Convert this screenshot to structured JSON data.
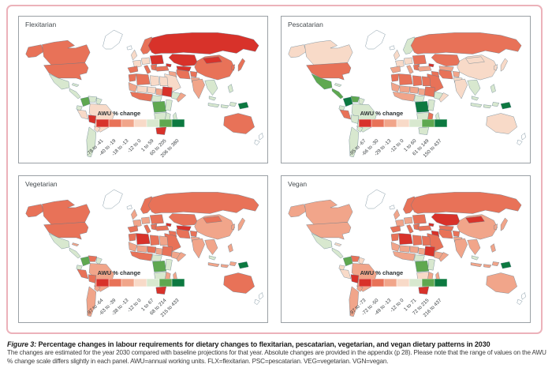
{
  "figure": {
    "caption_label": "Figure 3:",
    "caption_title": "Percentage changes in labour requirements for dietary changes to flexitarian, pescatarian, vegetarian, and vegan dietary patterns in 2030",
    "caption_body": "The changes are estimated for the year 2030 compared with baseline projections for that year. Absolute changes are provided in the appendix (p 28). Please note that the range of values on the AWU % change scale differs slightly in each panel. AWU=annual working units. FLX=flexitarian. PSC=pescatarian. VEG=vegetarian. VGN=vegan."
  },
  "colors": {
    "frame_pink": "#ecb2ba",
    "panel_border": "#9aa0a5",
    "coastline": "#5e7a8a",
    "no_data": "#ffffff",
    "palette": [
      "#d8322a",
      "#e87258",
      "#f1a58a",
      "#f8dac8",
      "#d8e8cf",
      "#5fa850",
      "#0c7940"
    ]
  },
  "chart_data": {
    "type": "heatmap",
    "subtype": "choropleth-world-maps",
    "unit": "AWU % change (annual working units, % change vs 2030 baseline)",
    "bin_note": "regions map country/region id to legend bin index 1-7 (1=most negative red, 7=most positive dark green, 0=no data)",
    "panels": [
      {
        "title": "Flexitarian",
        "legend_title": "AWU % change",
        "legend_labels": [
          "-78 to -41",
          "-40 to -19",
          "-18 to -13",
          "-12 to 0",
          "1 to 59",
          "60 to 205",
          "206 to 380"
        ],
        "regions": {
          "greenland": 0,
          "iceland": 0,
          "alaska": 2,
          "canada": 2,
          "usa": 2,
          "mexico": 5,
          "cuba": 5,
          "camerica": 5,
          "colombia": 6,
          "venezuela": 5,
          "guyanas": 5,
          "ecuador": 5,
          "peru": 4,
          "brazil": 4,
          "bolivia": 1,
          "paraguay": 4,
          "chile_argentina": 5,
          "scandinavia": 2,
          "uk": 4,
          "france": 4,
          "centraleurope": 4,
          "easteurope": 1,
          "iberia": 2,
          "italy": 2,
          "balkans": 2,
          "russia": 1,
          "kazakh": 1,
          "centralasia": 1,
          "caucasus": 1,
          "turkey": 2,
          "iraq": 3,
          "iran": 2,
          "afghanistan": 2,
          "pakistan": 3,
          "middleeast": 4,
          "morocco": 2,
          "algeria": 2,
          "libya": 4,
          "egypt": 4,
          "mauritania": 3,
          "mali": 4,
          "niger": 4,
          "chad": 3,
          "sudan": 1,
          "ethiopia": 5,
          "somalia": 3,
          "wafrica": 2,
          "cameroon_caf": 5,
          "drc": 6,
          "eastafrica": 5,
          "angola_zambia": 5,
          "mozam_zim": 5,
          "nam_bots": 5,
          "southafrica": 1,
          "madagascar": 5,
          "india": 3,
          "china": 2,
          "mongolia": 1,
          "korea": 2,
          "japan": 2,
          "seasia": 5,
          "philippines": 5,
          "malaysia": 5,
          "indonesia1": 5,
          "indonesia2": 5,
          "indonesia3": 5,
          "png": 7,
          "australia": 2,
          "newzealand": 0,
          "newzealand2": 0
        }
      },
      {
        "title": "Pescatarian",
        "legend_title": "AWU % change",
        "legend_labels": [
          "-85 to -67",
          "-66 to -30",
          "-29 to -13",
          "-12 to 0",
          "1 to 60",
          "61 to 149",
          "150 to 437"
        ],
        "regions": {
          "greenland": 0,
          "iceland": 0,
          "alaska": 4,
          "canada": 4,
          "usa": 2,
          "mexico": 6,
          "cuba": 5,
          "camerica": 6,
          "colombia": 7,
          "venezuela": 6,
          "guyanas": 5,
          "ecuador": 5,
          "peru": 2,
          "brazil": 5,
          "bolivia": 5,
          "paraguay": 5,
          "chile_argentina": 5,
          "scandinavia": 5,
          "uk": 4,
          "france": 4,
          "centraleurope": 4,
          "easteurope": 2,
          "iberia": 3,
          "italy": 3,
          "balkans": 2,
          "russia": 2,
          "kazakh": 2,
          "centralasia": 3,
          "caucasus": 1,
          "turkey": 3,
          "iraq": 2,
          "iran": 2,
          "afghanistan": 3,
          "pakistan": 4,
          "middleeast": 2,
          "morocco": 2,
          "algeria": 2,
          "libya": 2,
          "egypt": 2,
          "mauritania": 3,
          "mali": 3,
          "niger": 3,
          "chad": 3,
          "sudan": 2,
          "ethiopia": 5,
          "somalia": 4,
          "wafrica": 3,
          "cameroon_caf": 5,
          "drc": 7,
          "eastafrica": 5,
          "angola_zambia": 5,
          "mozam_zim": 2,
          "nam_bots": 5,
          "southafrica": 5,
          "madagascar": 5,
          "india": 4,
          "china": 4,
          "mongolia": 4,
          "korea": 4,
          "japan": 4,
          "seasia": 5,
          "philippines": 5,
          "malaysia": 5,
          "indonesia1": 5,
          "indonesia2": 5,
          "indonesia3": 5,
          "png": 7,
          "australia": 4,
          "newzealand": 0,
          "newzealand2": 0
        }
      },
      {
        "title": "Vegetarian",
        "legend_title": "AWU % change",
        "legend_labels": [
          "-97 to -64",
          "-63 to -39",
          "-38 to -13",
          "-12 to 0",
          "1 to 67",
          "68 to 214",
          "215 to 433"
        ],
        "regions": {
          "greenland": 0,
          "iceland": 0,
          "alaska": 2,
          "canada": 2,
          "usa": 2,
          "mexico": 5,
          "cuba": 3,
          "camerica": 5,
          "colombia": 6,
          "venezuela": 2,
          "guyanas": 5,
          "ecuador": 5,
          "peru": 2,
          "brazil": 3,
          "bolivia": 2,
          "paraguay": 3,
          "chile_argentina": 3,
          "scandinavia": 2,
          "uk": 3,
          "france": 3,
          "centraleurope": 3,
          "easteurope": 2,
          "iberia": 2,
          "italy": 2,
          "balkans": 2,
          "russia": 2,
          "kazakh": 2,
          "centralasia": 1,
          "caucasus": 1,
          "turkey": 2,
          "iraq": 2,
          "iran": 2,
          "afghanistan": 2,
          "pakistan": 3,
          "middleeast": 2,
          "morocco": 2,
          "algeria": 1,
          "libya": 2,
          "egypt": 3,
          "mauritania": 3,
          "mali": 3,
          "niger": 2,
          "chad": 3,
          "sudan": 2,
          "ethiopia": 3,
          "somalia": 3,
          "wafrica": 2,
          "cameroon_caf": 5,
          "drc": 6,
          "eastafrica": 5,
          "angola_zambia": 5,
          "mozam_zim": 3,
          "nam_bots": 5,
          "southafrica": 1,
          "madagascar": 3,
          "india": 3,
          "china": 3,
          "mongolia": 2,
          "korea": 3,
          "japan": 3,
          "seasia": 3,
          "philippines": 3,
          "malaysia": 5,
          "indonesia1": 3,
          "indonesia2": 3,
          "indonesia3": 3,
          "png": 7,
          "australia": 2,
          "newzealand": 0,
          "newzealand2": 0
        }
      },
      {
        "title": "Vegan",
        "legend_title": "AWU % change",
        "legend_labels": [
          "-97 to -73",
          "-72 to -50",
          "-49 to -13",
          "-12 to 0",
          "1 to 71",
          "72 to 215",
          "216 to 437"
        ],
        "regions": {
          "greenland": 0,
          "iceland": 0,
          "alaska": 3,
          "canada": 3,
          "usa": 3,
          "mexico": 5,
          "cuba": 4,
          "camerica": 5,
          "colombia": 6,
          "venezuela": 2,
          "guyanas": 4,
          "ecuador": 4,
          "peru": 4,
          "brazil": 3,
          "bolivia": 1,
          "paraguay": 3,
          "chile_argentina": 3,
          "scandinavia": 2,
          "uk": 3,
          "france": 3,
          "centraleurope": 3,
          "easteurope": 2,
          "iberia": 2,
          "italy": 2,
          "balkans": 2,
          "russia": 2,
          "kazakh": 1,
          "centralasia": 2,
          "caucasus": 1,
          "turkey": 2,
          "iraq": 1,
          "iran": 2,
          "afghanistan": 2,
          "pakistan": 3,
          "middleeast": 2,
          "morocco": 2,
          "algeria": 1,
          "libya": 2,
          "egypt": 2,
          "mauritania": 3,
          "mali": 3,
          "niger": 3,
          "chad": 3,
          "sudan": 1,
          "ethiopia": 3,
          "somalia": 3,
          "wafrica": 3,
          "cameroon_caf": 5,
          "drc": 6,
          "eastafrica": 5,
          "angola_zambia": 4,
          "mozam_zim": 3,
          "nam_bots": 5,
          "southafrica": 1,
          "madagascar": 3,
          "india": 3,
          "china": 3,
          "mongolia": 1,
          "korea": 3,
          "japan": 3,
          "seasia": 3,
          "philippines": 3,
          "malaysia": 5,
          "indonesia1": 3,
          "indonesia2": 3,
          "indonesia3": 3,
          "png": 7,
          "australia": 3,
          "newzealand": 0,
          "newzealand2": 0
        }
      }
    ]
  }
}
